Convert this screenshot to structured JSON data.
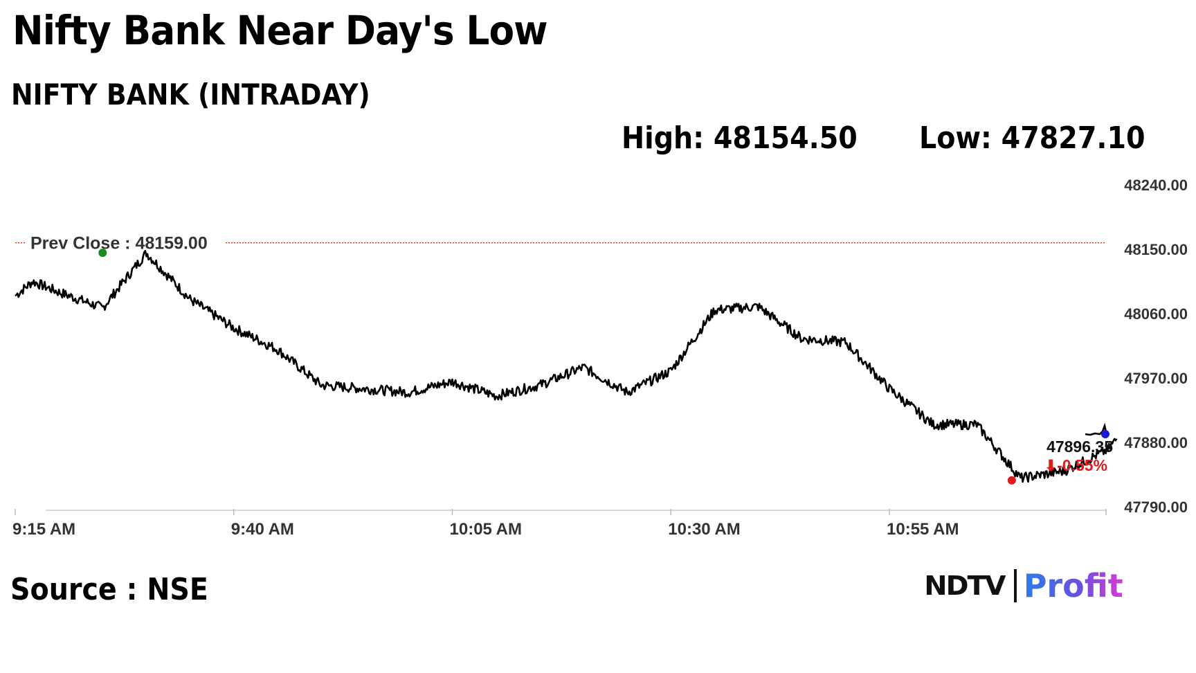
{
  "header": {
    "title": "Nifty Bank Near Day's Low",
    "subtitle": "NIFTY BANK (INTRADAY)",
    "high_text": "High: 48154.50",
    "low_text": "Low: 47827.10"
  },
  "footer": {
    "source": "Source : NSE",
    "brand_left": "NDTV",
    "brand_right": "Profit"
  },
  "colors": {
    "line": "#000000",
    "prev_close_line": "#c0392b",
    "high_marker": "#1e8a1e",
    "low_marker": "#e01b1b",
    "last_marker": "#1a1ad6",
    "change_text": "#e01b1b"
  },
  "chart_data": {
    "type": "line",
    "xlabel": "",
    "ylabel": "",
    "ylim": [
      47790,
      48240
    ],
    "yticks": [
      "48240.00",
      "48150.00",
      "48060.00",
      "47970.00",
      "47880.00",
      "47790.00"
    ],
    "xticks": [
      "9:15 AM",
      "9:40 AM",
      "10:05 AM",
      "10:30 AM",
      "10:55 AM"
    ],
    "x_minutes": [
      0,
      2,
      5,
      10,
      15,
      20,
      25,
      30,
      35,
      40,
      45,
      50,
      55,
      60,
      65,
      70,
      75,
      80,
      85,
      90,
      95,
      100,
      105,
      110,
      115,
      120,
      125,
      126
    ],
    "prev_close_label": "Prev Close : 48159.00",
    "prev_close": 48159.0,
    "last_value_label": "47896.35",
    "change_label": "-0.55%",
    "series": [
      {
        "values": [
          48085,
          48105,
          48090,
          48068,
          48145,
          48080,
          48040,
          48010,
          47960,
          47955,
          47950,
          47965,
          47945,
          47960,
          47985,
          47950,
          47980,
          48065,
          48070,
          48025,
          48020,
          47955,
          47905,
          47905,
          47830,
          47840,
          47870,
          47885
        ]
      }
    ],
    "high_point": {
      "minute": 10,
      "value": 48145
    },
    "low_point": {
      "minute": 114,
      "value": 47827
    }
  }
}
